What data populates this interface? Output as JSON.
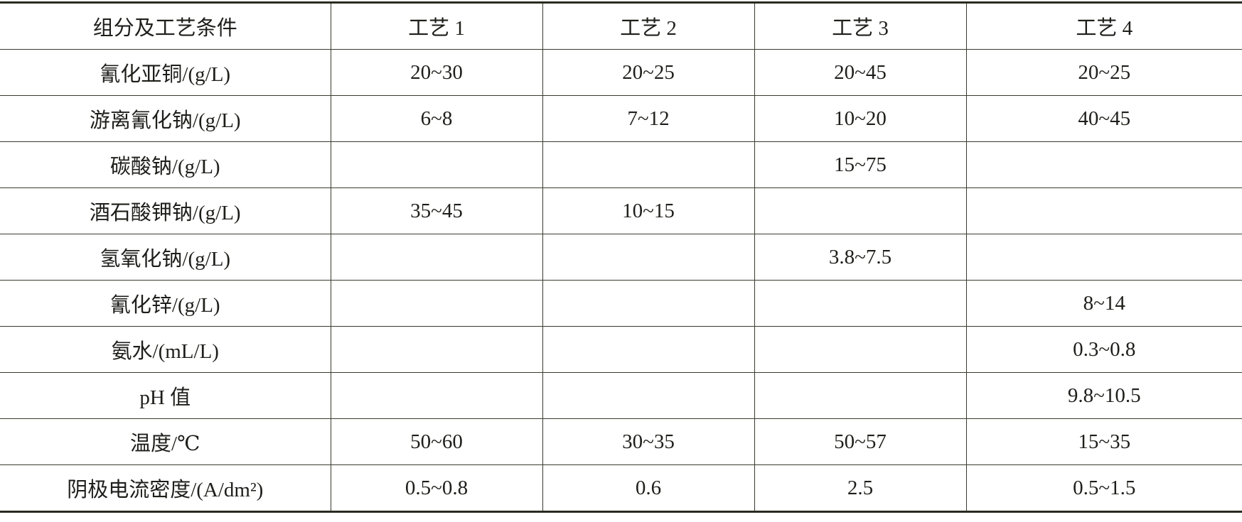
{
  "table": {
    "header": [
      "组分及工艺条件",
      "工艺 1",
      "工艺 2",
      "工艺 3",
      "工艺 4"
    ],
    "rows": [
      [
        "氰化亚铜/(g/L)",
        "20~30",
        "20~25",
        "20~45",
        "20~25"
      ],
      [
        "游离氰化钠/(g/L)",
        "6~8",
        "7~12",
        "10~20",
        "40~45"
      ],
      [
        "碳酸钠/(g/L)",
        null,
        null,
        "15~75",
        null
      ],
      [
        "酒石酸钾钠/(g/L)",
        "35~45",
        "10~15",
        null,
        null
      ],
      [
        "氢氧化钠/(g/L)",
        null,
        null,
        "3.8~7.5",
        null
      ],
      [
        "氰化锌/(g/L)",
        null,
        null,
        null,
        "8~14"
      ],
      [
        "氨水/(mL/L)",
        null,
        null,
        null,
        "0.3~0.8"
      ],
      [
        "pH 值",
        null,
        null,
        null,
        "9.8~10.5"
      ],
      [
        "温度/℃",
        "50~60",
        "30~35",
        "50~57",
        "15~35"
      ],
      [
        "阴极电流密度/(A/dm²)",
        "0.5~0.8",
        "0.6",
        "2.5",
        "0.5~1.5"
      ]
    ]
  }
}
